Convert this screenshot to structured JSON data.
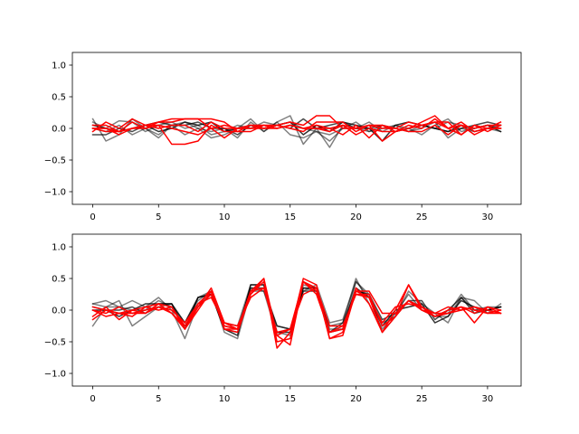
{
  "chart_data": [
    {
      "type": "line",
      "title": "",
      "xlabel": "",
      "ylabel": "",
      "xlim": [
        -1.55,
        32.55
      ],
      "ylim": [
        -1.2,
        1.2
      ],
      "xticks": [
        0,
        5,
        10,
        15,
        20,
        25,
        30
      ],
      "yticks": [
        -1.0,
        -0.5,
        0.0,
        0.5,
        1.0
      ],
      "xtick_labels": [
        "0",
        "5",
        "10",
        "15",
        "20",
        "25",
        "30"
      ],
      "ytick_labels": [
        "−1.0",
        "−0.5",
        "0.0",
        "0.5",
        "1.0"
      ],
      "grid": false,
      "x": [
        0,
        1,
        2,
        3,
        4,
        5,
        6,
        7,
        8,
        9,
        10,
        11,
        12,
        13,
        14,
        15,
        16,
        17,
        18,
        19,
        20,
        21,
        22,
        23,
        24,
        25,
        26,
        27,
        28,
        29,
        30,
        31
      ],
      "series": [
        {
          "color": "#000000",
          "opacity": 0.5,
          "values": [
            0.15,
            -0.2,
            -0.1,
            0.15,
            0.0,
            -0.1,
            0.05,
            0.1,
            0.0,
            -0.15,
            -0.1,
            0.0,
            0.15,
            -0.05,
            0.1,
            0.2,
            -0.25,
            0.0,
            -0.3,
            0.05,
            0.0,
            0.1,
            -0.05,
            0.05,
            0.0,
            -0.1,
            0.05,
            0.15,
            -0.05,
            0.0,
            0.05,
            0.0
          ]
        },
        {
          "color": "#000000",
          "opacity": 0.5,
          "values": [
            0.1,
            0.0,
            0.12,
            0.1,
            -0.05,
            0.05,
            0.1,
            0.0,
            0.05,
            -0.1,
            -0.05,
            0.05,
            0.0,
            0.1,
            0.05,
            0.1,
            0.0,
            -0.05,
            -0.1,
            0.0,
            0.1,
            -0.05,
            0.05,
            0.0,
            -0.05,
            0.05,
            0.0,
            0.1,
            0.05,
            -0.05,
            0.0,
            0.05
          ]
        },
        {
          "color": "#000000",
          "opacity": 0.7,
          "values": [
            -0.1,
            -0.1,
            0.0,
            -0.05,
            0.05,
            0.1,
            0.05,
            0.05,
            0.1,
            0.0,
            0.0,
            -0.1,
            0.05,
            0.0,
            0.05,
            0.0,
            0.15,
            0.0,
            0.05,
            0.1,
            0.0,
            0.0,
            0.05,
            -0.05,
            0.0,
            0.05,
            0.0,
            -0.05,
            0.0,
            0.05,
            0.1,
            0.05
          ]
        },
        {
          "color": "#000000",
          "opacity": 0.8,
          "values": [
            0.05,
            0.0,
            -0.05,
            0.0,
            0.05,
            -0.05,
            0.0,
            0.1,
            0.05,
            0.1,
            -0.05,
            0.0,
            0.05,
            0.0,
            0.05,
            0.1,
            -0.1,
            0.05,
            -0.05,
            0.1,
            0.05,
            0.0,
            -0.2,
            0.05,
            0.1,
            0.05,
            0.0,
            -0.05,
            0.05,
            0.0,
            0.05,
            -0.05
          ]
        },
        {
          "color": "#000000",
          "opacity": 0.5,
          "values": [
            0.0,
            -0.05,
            0.05,
            -0.1,
            0.0,
            -0.15,
            0.05,
            -0.1,
            0.0,
            -0.05,
            0.0,
            -0.15,
            0.1,
            -0.05,
            0.1,
            -0.1,
            -0.15,
            -0.05,
            -0.2,
            0.0,
            0.0,
            -0.05,
            0.0,
            0.05,
            -0.05,
            0.0,
            0.1,
            -0.15,
            0.0,
            -0.05,
            0.0,
            -0.05
          ]
        },
        {
          "color": "#ff0000",
          "opacity": 1.0,
          "values": [
            0.0,
            0.0,
            -0.05,
            0.1,
            0.0,
            0.1,
            0.15,
            0.15,
            0.15,
            0.0,
            0.05,
            0.0,
            0.0,
            0.05,
            0.05,
            0.0,
            -0.05,
            0.1,
            0.1,
            0.1,
            -0.05,
            0.05,
            -0.2,
            -0.05,
            0.0,
            0.1,
            0.2,
            0.0,
            0.05,
            0.0,
            0.05,
            0.05
          ]
        },
        {
          "color": "#ff0000",
          "opacity": 1.0,
          "values": [
            0.05,
            0.05,
            -0.05,
            0.0,
            0.05,
            0.05,
            -0.25,
            -0.25,
            -0.2,
            0.05,
            -0.05,
            -0.05,
            0.05,
            0.0,
            0.05,
            0.1,
            0.05,
            0.2,
            0.2,
            0.0,
            0.0,
            0.05,
            0.05,
            0.0,
            0.1,
            0.05,
            0.1,
            0.0,
            0.1,
            -0.05,
            0.0,
            0.1
          ]
        },
        {
          "color": "#ff0000",
          "opacity": 1.0,
          "values": [
            0.0,
            -0.05,
            -0.05,
            0.0,
            0.05,
            0.1,
            0.1,
            0.15,
            0.15,
            0.15,
            0.1,
            -0.05,
            -0.05,
            0.05,
            0.0,
            0.05,
            0.0,
            0.05,
            0.0,
            -0.1,
            0.05,
            -0.15,
            0.05,
            -0.05,
            0.05,
            0.0,
            0.15,
            0.0,
            -0.1,
            0.05,
            -0.05,
            0.05
          ]
        },
        {
          "color": "#ff0000",
          "opacity": 1.0,
          "values": [
            -0.05,
            0.1,
            0.0,
            0.15,
            0.05,
            0.0,
            0.05,
            0.05,
            -0.05,
            0.1,
            0.0,
            0.0,
            0.05,
            0.05,
            0.0,
            0.05,
            0.0,
            0.0,
            -0.05,
            0.05,
            0.0,
            0.05,
            0.0,
            0.0,
            -0.05,
            -0.05,
            0.05,
            -0.1,
            0.05,
            -0.1,
            0.0,
            0.0
          ]
        },
        {
          "color": "#ff0000",
          "opacity": 1.0,
          "values": [
            0.0,
            0.0,
            -0.1,
            0.0,
            0.0,
            0.05,
            0.0,
            -0.05,
            -0.1,
            0.0,
            -0.15,
            0.0,
            0.0,
            0.0,
            0.0,
            0.05,
            0.0,
            0.0,
            0.0,
            0.05,
            -0.1,
            0.0,
            -0.05,
            -0.05,
            0.0,
            0.05,
            0.1,
            0.1,
            -0.1,
            0.05,
            0.0,
            0.0
          ]
        }
      ]
    },
    {
      "type": "line",
      "title": "",
      "xlabel": "",
      "ylabel": "",
      "xlim": [
        -1.55,
        32.55
      ],
      "ylim": [
        -1.2,
        1.2
      ],
      "xticks": [
        0,
        5,
        10,
        15,
        20,
        25,
        30
      ],
      "yticks": [
        -1.0,
        -0.5,
        0.0,
        0.5,
        1.0
      ],
      "xtick_labels": [
        "0",
        "5",
        "10",
        "15",
        "20",
        "25",
        "30"
      ],
      "ytick_labels": [
        "−1.0",
        "−0.5",
        "0.0",
        "0.5",
        "1.0"
      ],
      "grid": false,
      "x": [
        0,
        1,
        2,
        3,
        4,
        5,
        6,
        7,
        8,
        9,
        10,
        11,
        12,
        13,
        14,
        15,
        16,
        17,
        18,
        19,
        20,
        21,
        22,
        23,
        24,
        25,
        26,
        27,
        28,
        29,
        30,
        31
      ],
      "series": [
        {
          "color": "#000000",
          "opacity": 0.5,
          "values": [
            0.1,
            0.15,
            0.05,
            0.15,
            0.05,
            0.2,
            0.0,
            -0.45,
            0.1,
            0.25,
            -0.3,
            -0.35,
            0.35,
            0.3,
            -0.4,
            -0.3,
            0.35,
            0.3,
            -0.25,
            -0.2,
            0.5,
            0.1,
            -0.3,
            -0.05,
            0.25,
            0.0,
            -0.1,
            -0.05,
            0.25,
            0.0,
            0.05,
            0.05
          ]
        },
        {
          "color": "#000000",
          "opacity": 0.5,
          "values": [
            -0.25,
            0.05,
            0.15,
            -0.25,
            -0.1,
            0.05,
            0.1,
            -0.3,
            0.2,
            0.3,
            -0.2,
            -0.25,
            0.4,
            0.4,
            -0.35,
            -0.4,
            0.4,
            0.35,
            -0.3,
            -0.3,
            0.45,
            0.2,
            -0.2,
            -0.1,
            0.3,
            0.1,
            -0.05,
            -0.2,
            0.2,
            0.15,
            -0.05,
            0.1
          ]
        },
        {
          "color": "#000000",
          "opacity": 0.7,
          "values": [
            0.05,
            0.0,
            0.0,
            0.05,
            -0.05,
            0.1,
            0.1,
            -0.3,
            0.2,
            0.25,
            -0.25,
            -0.3,
            0.35,
            0.35,
            -0.25,
            -0.3,
            0.3,
            0.3,
            -0.35,
            -0.2,
            0.3,
            0.25,
            -0.15,
            -0.05,
            0.15,
            0.15,
            -0.15,
            0.0,
            0.2,
            -0.05,
            0.0,
            0.05
          ]
        },
        {
          "color": "#000000",
          "opacity": 0.8,
          "values": [
            0.0,
            0.0,
            -0.1,
            0.0,
            0.1,
            0.1,
            0.1,
            -0.2,
            0.2,
            0.25,
            -0.3,
            -0.4,
            0.4,
            0.4,
            -0.35,
            -0.35,
            0.35,
            0.35,
            -0.35,
            -0.3,
            0.35,
            0.2,
            -0.25,
            0.0,
            0.05,
            0.1,
            -0.2,
            -0.1,
            0.15,
            0.05,
            0.0,
            0.05
          ]
        },
        {
          "color": "#000000",
          "opacity": 0.5,
          "values": [
            0.1,
            0.05,
            0.05,
            0.0,
            0.0,
            0.15,
            0.05,
            -0.2,
            0.15,
            0.3,
            -0.35,
            -0.45,
            0.3,
            0.3,
            -0.25,
            -0.3,
            0.3,
            0.4,
            -0.2,
            -0.15,
            0.45,
            0.25,
            -0.35,
            -0.1,
            0.15,
            0.05,
            -0.1,
            -0.1,
            0.2,
            0.0,
            0.0,
            0.05
          ]
        },
        {
          "color": "#ff0000",
          "opacity": 1.0,
          "values": [
            0.0,
            -0.1,
            -0.05,
            -0.1,
            0.05,
            0.1,
            -0.05,
            -0.3,
            0.05,
            0.35,
            -0.2,
            -0.3,
            0.3,
            0.5,
            -0.6,
            -0.35,
            0.5,
            0.4,
            -0.45,
            -0.4,
            0.3,
            0.2,
            -0.35,
            -0.1,
            0.4,
            0.05,
            -0.1,
            0.0,
            0.05,
            -0.2,
            0.05,
            0.0
          ]
        },
        {
          "color": "#ff0000",
          "opacity": 1.0,
          "values": [
            -0.1,
            0.05,
            -0.15,
            0.0,
            -0.05,
            0.1,
            0.05,
            -0.3,
            0.0,
            0.3,
            -0.3,
            -0.35,
            0.25,
            0.5,
            -0.4,
            -0.55,
            0.45,
            0.35,
            -0.45,
            -0.35,
            0.35,
            0.1,
            -0.35,
            0.0,
            0.4,
            0.0,
            -0.05,
            -0.05,
            0.0,
            0.05,
            -0.05,
            -0.05
          ]
        },
        {
          "color": "#ff0000",
          "opacity": 1.0,
          "values": [
            -0.15,
            0.0,
            -0.05,
            -0.05,
            0.0,
            0.05,
            -0.05,
            -0.25,
            0.05,
            0.25,
            -0.25,
            -0.3,
            0.3,
            0.35,
            -0.4,
            -0.3,
            0.45,
            0.3,
            -0.35,
            -0.3,
            0.3,
            0.3,
            -0.05,
            -0.05,
            0.15,
            0.05,
            -0.1,
            -0.05,
            0.05,
            0.0,
            -0.05,
            0.0
          ]
        },
        {
          "color": "#ff0000",
          "opacity": 1.0,
          "values": [
            0.0,
            -0.05,
            0.05,
            -0.05,
            -0.05,
            0.05,
            0.0,
            -0.2,
            0.1,
            0.2,
            -0.2,
            -0.25,
            0.2,
            0.35,
            -0.35,
            -0.3,
            0.25,
            0.35,
            -0.25,
            -0.25,
            0.25,
            0.2,
            -0.2,
            0.05,
            0.1,
            0.05,
            -0.05,
            0.05,
            0.0,
            0.05,
            0.0,
            -0.05
          ]
        },
        {
          "color": "#ff0000",
          "opacity": 1.0,
          "values": [
            0.05,
            0.0,
            -0.05,
            0.0,
            0.05,
            0.0,
            0.05,
            -0.25,
            0.1,
            0.3,
            -0.3,
            -0.3,
            0.25,
            0.45,
            -0.5,
            -0.45,
            0.45,
            0.25,
            -0.35,
            -0.25,
            0.25,
            0.25,
            -0.25,
            -0.1,
            0.15,
            0.0,
            -0.1,
            0.0,
            0.05,
            -0.05,
            0.05,
            -0.05
          ]
        }
      ]
    }
  ]
}
